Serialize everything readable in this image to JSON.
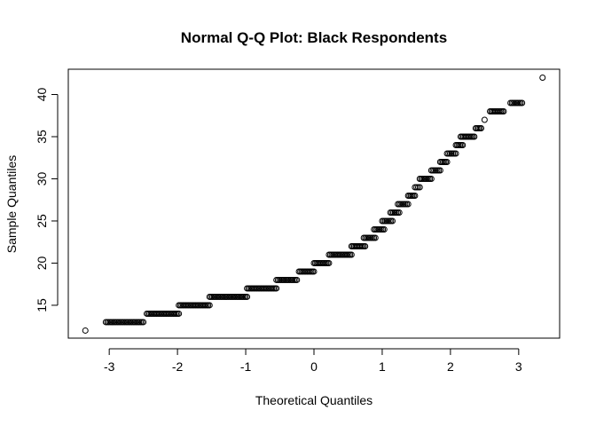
{
  "chart_data": {
    "type": "scatter",
    "title": "Normal Q-Q Plot: Black Respondents",
    "xlabel": "Theoretical Quantiles",
    "ylabel": "Sample Quantiles",
    "xlim": [
      -3.6,
      3.6
    ],
    "ylim": [
      11.1,
      43.0
    ],
    "x_ticks": [
      -3,
      -2,
      -1,
      0,
      1,
      2,
      3
    ],
    "y_ticks": [
      15,
      20,
      25,
      30,
      35,
      40
    ],
    "grid": false,
    "legend": "none",
    "point_style": "open-circle",
    "runs": [
      {
        "y": 12,
        "x_from": -3.35,
        "x_to": -3.35
      },
      {
        "y": 13,
        "x_from": -3.05,
        "x_to": -2.5
      },
      {
        "y": 14,
        "x_from": -2.45,
        "x_to": -1.98
      },
      {
        "y": 15,
        "x_from": -1.98,
        "x_to": -1.53
      },
      {
        "y": 16,
        "x_from": -1.53,
        "x_to": -0.98
      },
      {
        "y": 17,
        "x_from": -0.98,
        "x_to": -0.55
      },
      {
        "y": 18,
        "x_from": -0.55,
        "x_to": -0.25
      },
      {
        "y": 19,
        "x_from": -0.22,
        "x_to": 0
      },
      {
        "y": 20,
        "x_from": 0,
        "x_to": 0.22
      },
      {
        "y": 21,
        "x_from": 0.22,
        "x_to": 0.55
      },
      {
        "y": 22,
        "x_from": 0.55,
        "x_to": 0.75
      },
      {
        "y": 23,
        "x_from": 0.73,
        "x_to": 0.9
      },
      {
        "y": 24,
        "x_from": 0.88,
        "x_to": 1.03
      },
      {
        "y": 25,
        "x_from": 1.0,
        "x_to": 1.15
      },
      {
        "y": 26,
        "x_from": 1.12,
        "x_to": 1.25
      },
      {
        "y": 27,
        "x_from": 1.23,
        "x_to": 1.38
      },
      {
        "y": 28,
        "x_from": 1.38,
        "x_to": 1.48
      },
      {
        "y": 29,
        "x_from": 1.48,
        "x_to": 1.55
      },
      {
        "y": 30,
        "x_from": 1.55,
        "x_to": 1.72
      },
      {
        "y": 31,
        "x_from": 1.72,
        "x_to": 1.85
      },
      {
        "y": 32,
        "x_from": 1.85,
        "x_to": 1.95
      },
      {
        "y": 33,
        "x_from": 1.95,
        "x_to": 2.08
      },
      {
        "y": 34,
        "x_from": 2.08,
        "x_to": 2.18
      },
      {
        "y": 35,
        "x_from": 2.15,
        "x_to": 2.35
      },
      {
        "y": 36,
        "x_from": 2.37,
        "x_to": 2.45
      },
      {
        "y": 37,
        "x_from": 2.5,
        "x_to": 2.5
      },
      {
        "y": 38,
        "x_from": 2.58,
        "x_to": 2.78
      },
      {
        "y": 39,
        "x_from": 2.88,
        "x_to": 3.05
      },
      {
        "y": 42,
        "x_from": 3.35,
        "x_to": 3.35
      }
    ]
  }
}
